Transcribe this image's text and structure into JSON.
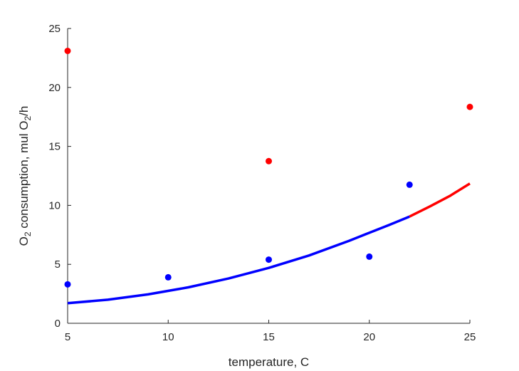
{
  "chart_data": {
    "type": "scatter",
    "title": "",
    "xlabel": "temperature, C",
    "ylabel": {
      "parts": [
        "O",
        "2",
        " consumption, mul O",
        "2",
        "/h"
      ]
    },
    "xlim": [
      5,
      25
    ],
    "ylim": [
      0,
      25
    ],
    "xticks": [
      "5",
      "10",
      "15",
      "20",
      "25"
    ],
    "yticks": [
      "0",
      "5",
      "10",
      "15",
      "20",
      "25"
    ],
    "grid": false,
    "legend": "none",
    "series": [
      {
        "kind": "points",
        "color": "#0000ff",
        "x": [
          5,
          10,
          15,
          20,
          22
        ],
        "y": [
          3.3,
          3.9,
          5.4,
          5.65,
          11.75
        ]
      },
      {
        "kind": "points",
        "color": "#ff0000",
        "x": [
          5,
          15,
          25
        ],
        "y": [
          23.1,
          13.75,
          18.35
        ]
      },
      {
        "kind": "line",
        "color": "#0000ff",
        "x": [
          5,
          7,
          9,
          11,
          13,
          15,
          17,
          19,
          21,
          22
        ],
        "y": [
          1.7,
          2.0,
          2.45,
          3.05,
          3.8,
          4.7,
          5.75,
          7.0,
          8.35,
          9.05
        ]
      },
      {
        "kind": "line",
        "color": "#ff0000",
        "x": [
          22,
          23,
          24,
          25
        ],
        "y": [
          9.05,
          9.9,
          10.8,
          11.85
        ]
      }
    ]
  }
}
